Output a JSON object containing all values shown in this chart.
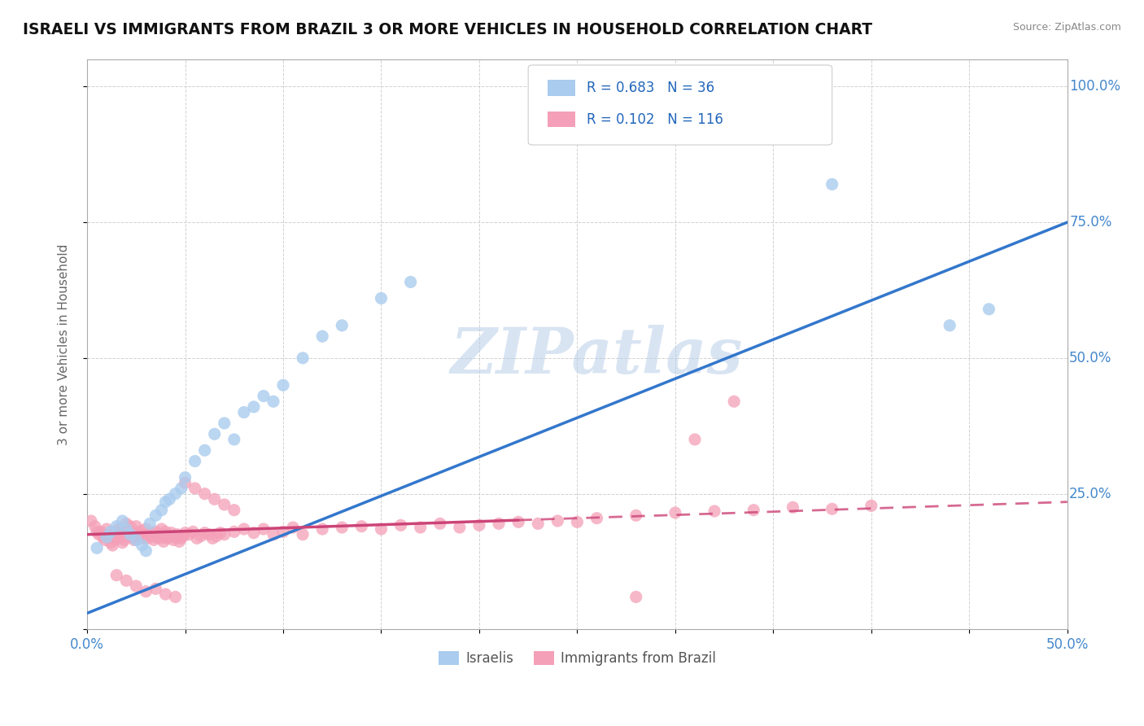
{
  "title": "ISRAELI VS IMMIGRANTS FROM BRAZIL 3 OR MORE VEHICLES IN HOUSEHOLD CORRELATION CHART",
  "source": "Source: ZipAtlas.com",
  "ylabel": "3 or more Vehicles in Household",
  "xlim": [
    0.0,
    0.5
  ],
  "ylim": [
    0.0,
    1.05
  ],
  "xticks": [
    0.0,
    0.05,
    0.1,
    0.15,
    0.2,
    0.25,
    0.3,
    0.35,
    0.4,
    0.45,
    0.5
  ],
  "xticklabels": [
    "0.0%",
    "",
    "",
    "",
    "",
    "",
    "",
    "",
    "",
    "",
    "50.0%"
  ],
  "yticks": [
    0.0,
    0.25,
    0.5,
    0.75,
    1.0
  ],
  "yticklabels": [
    "",
    "25.0%",
    "50.0%",
    "75.0%",
    "100.0%"
  ],
  "legend_r1": "R = 0.683",
  "legend_n1": "N = 36",
  "legend_r2": "R = 0.102",
  "legend_n2": "N = 116",
  "color_israeli": "#aaccee",
  "color_brazil": "#f4a0b8",
  "color_trendline_israeli": "#3377cc",
  "color_trendline_brazil": "#cc4477",
  "background_color": "#ffffff",
  "watermark": "ZIPatlas",
  "israeli_x": [
    0.005,
    0.01,
    0.012,
    0.015,
    0.018,
    0.02,
    0.022,
    0.025,
    0.028,
    0.03,
    0.032,
    0.035,
    0.038,
    0.04,
    0.042,
    0.045,
    0.048,
    0.05,
    0.055,
    0.06,
    0.065,
    0.07,
    0.075,
    0.08,
    0.085,
    0.09,
    0.095,
    0.1,
    0.11,
    0.12,
    0.13,
    0.15,
    0.165,
    0.38,
    0.44,
    0.46
  ],
  "israeli_y": [
    0.15,
    0.17,
    0.18,
    0.19,
    0.2,
    0.185,
    0.175,
    0.165,
    0.155,
    0.145,
    0.195,
    0.21,
    0.22,
    0.235,
    0.24,
    0.25,
    0.26,
    0.28,
    0.31,
    0.33,
    0.36,
    0.38,
    0.35,
    0.4,
    0.41,
    0.43,
    0.42,
    0.45,
    0.5,
    0.54,
    0.56,
    0.61,
    0.64,
    0.82,
    0.56,
    0.59
  ],
  "brazil_x": [
    0.002,
    0.004,
    0.005,
    0.006,
    0.007,
    0.008,
    0.009,
    0.01,
    0.01,
    0.011,
    0.012,
    0.013,
    0.014,
    0.015,
    0.015,
    0.016,
    0.017,
    0.018,
    0.018,
    0.019,
    0.02,
    0.02,
    0.021,
    0.022,
    0.022,
    0.023,
    0.024,
    0.024,
    0.025,
    0.025,
    0.026,
    0.027,
    0.028,
    0.028,
    0.029,
    0.03,
    0.03,
    0.031,
    0.032,
    0.033,
    0.034,
    0.035,
    0.035,
    0.036,
    0.037,
    0.038,
    0.038,
    0.039,
    0.04,
    0.04,
    0.041,
    0.042,
    0.043,
    0.044,
    0.045,
    0.046,
    0.047,
    0.048,
    0.049,
    0.05,
    0.052,
    0.054,
    0.056,
    0.058,
    0.06,
    0.062,
    0.064,
    0.066,
    0.068,
    0.07,
    0.075,
    0.08,
    0.085,
    0.09,
    0.095,
    0.1,
    0.105,
    0.11,
    0.12,
    0.13,
    0.14,
    0.15,
    0.16,
    0.17,
    0.18,
    0.19,
    0.2,
    0.21,
    0.22,
    0.23,
    0.24,
    0.25,
    0.26,
    0.28,
    0.3,
    0.32,
    0.34,
    0.36,
    0.38,
    0.4,
    0.28,
    0.31,
    0.33,
    0.015,
    0.02,
    0.025,
    0.03,
    0.035,
    0.04,
    0.045,
    0.05,
    0.055,
    0.06,
    0.065,
    0.07,
    0.075
  ],
  "brazil_y": [
    0.2,
    0.19,
    0.18,
    0.175,
    0.18,
    0.17,
    0.165,
    0.175,
    0.185,
    0.17,
    0.16,
    0.155,
    0.165,
    0.17,
    0.18,
    0.185,
    0.175,
    0.16,
    0.17,
    0.165,
    0.185,
    0.195,
    0.175,
    0.18,
    0.19,
    0.17,
    0.165,
    0.175,
    0.18,
    0.19,
    0.175,
    0.168,
    0.172,
    0.182,
    0.168,
    0.175,
    0.185,
    0.168,
    0.172,
    0.178,
    0.165,
    0.17,
    0.18,
    0.172,
    0.168,
    0.175,
    0.185,
    0.162,
    0.17,
    0.18,
    0.168,
    0.172,
    0.178,
    0.165,
    0.17,
    0.175,
    0.162,
    0.168,
    0.172,
    0.178,
    0.175,
    0.18,
    0.168,
    0.172,
    0.178,
    0.175,
    0.168,
    0.172,
    0.178,
    0.175,
    0.18,
    0.185,
    0.178,
    0.185,
    0.175,
    0.18,
    0.188,
    0.175,
    0.185,
    0.188,
    0.19,
    0.185,
    0.192,
    0.188,
    0.195,
    0.188,
    0.192,
    0.195,
    0.198,
    0.195,
    0.2,
    0.198,
    0.205,
    0.21,
    0.215,
    0.218,
    0.22,
    0.225,
    0.222,
    0.228,
    0.06,
    0.35,
    0.42,
    0.1,
    0.09,
    0.08,
    0.07,
    0.075,
    0.065,
    0.06,
    0.27,
    0.26,
    0.25,
    0.24,
    0.23,
    0.22
  ],
  "isr_trend_x0": 0.0,
  "isr_trend_y0": 0.03,
  "isr_trend_x1": 0.5,
  "isr_trend_y1": 0.75,
  "bra_trend_x0": 0.0,
  "bra_trend_y0": 0.175,
  "bra_trend_x1": 0.5,
  "bra_trend_y1": 0.235
}
